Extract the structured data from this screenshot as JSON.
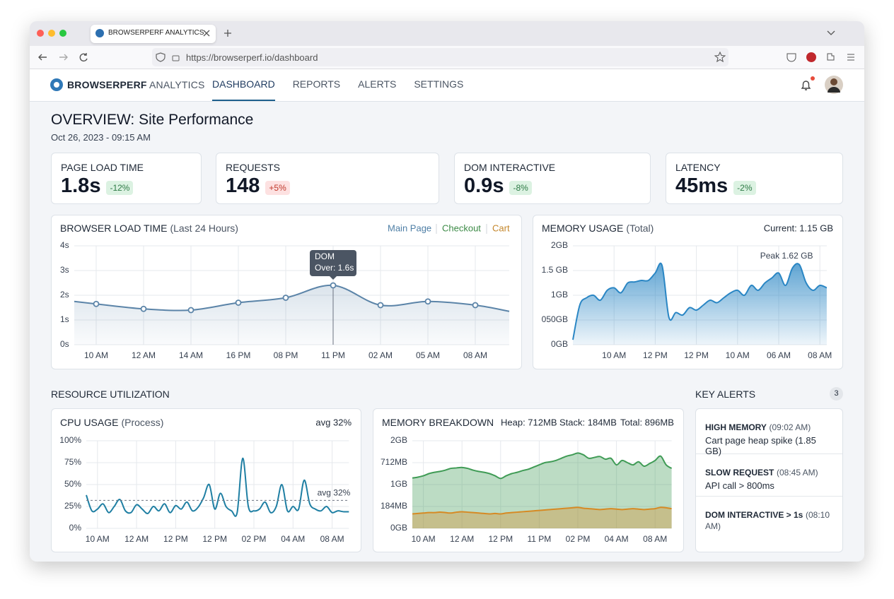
{
  "browser": {
    "tab_title": "BROWSERPERF ANALYTICS",
    "url": "https://browserperf.io/dashboard"
  },
  "nav": {
    "brand": "BROWSERPERF",
    "brand_suffix": "ANALYTICS",
    "links": [
      "DASHBOARD",
      "REPORTS",
      "ALERTS",
      "SETTINGS"
    ],
    "active": 0
  },
  "header": {
    "title": "OVERVIEW: Site Performance",
    "date": "Oct 26, 2023 - 09:15 AM"
  },
  "kpis": [
    {
      "label": "PAGE LOAD TIME",
      "value": "1.8s",
      "change": "-12%"
    },
    {
      "label": "REQUESTS",
      "value": 148,
      "change": "+5%"
    },
    {
      "label": "DOM INTERACTIVE",
      "value": "0.9s",
      "change": "-8%"
    },
    {
      "label": "LATENCY",
      "value": "45ms",
      "change": "-2%"
    }
  ],
  "sections": {
    "resources": "RESOURCE UTILIZATION"
  },
  "alerts": {
    "title": "KEY ALERTS",
    "count": 3,
    "items": [
      {
        "title": "HIGH MEMORY",
        "time": "(09:02 AM)",
        "text": "Cart page heap spike (1.85 GB)"
      },
      {
        "title": "SLOW REQUEST",
        "time": "(08:45 AM)",
        "text": "API call > 800ms"
      },
      {
        "title": "DOM INTERACTIVE > 1s",
        "time": "(08:10 AM)"
      }
    ]
  },
  "chart_data": [
    {
      "type": "area",
      "title": "BROWSER LOAD TIME",
      "subtitle": "(Last 24 Hours)",
      "legend": [
        {
          "name": "Main Page",
          "color": "#4f7fa6"
        },
        {
          "name": "Checkout",
          "color": "#3d8b47"
        },
        {
          "name": "Cart",
          "color": "#c4862a"
        }
      ],
      "categories": [
        null,
        "10 AM",
        "12 AM",
        "14 AM",
        "16 PM",
        "08 PM",
        "11 PM",
        "02 AM",
        "05 AM",
        "08 AM",
        null
      ],
      "series": [
        {
          "color": "#5b84a8",
          "values": [
            1.75,
            1.65,
            1.45,
            1.4,
            1.7,
            1.9,
            2.4,
            1.6,
            1.75,
            1.6,
            1.35
          ]
        }
      ],
      "annotation": [
        "DOM",
        "Over: 1.6s"
      ],
      "ylim": [
        0,
        4
      ],
      "yticks": [
        {
          "value": 0,
          "label": "0s"
        },
        {
          "value": 1,
          "label": "1s"
        },
        {
          "value": 2,
          "label": "2s"
        },
        {
          "value": 3,
          "label": "3s"
        },
        {
          "value": 4,
          "label": "4s"
        }
      ],
      "grid": true
    },
    {
      "type": "area",
      "title": "MEMORY USAGE",
      "subtitle": "(Total)",
      "current_label": "Current: 1.15 GB",
      "peak_label": "Peak 1.62 GB",
      "color": "#2a86c4",
      "categories": [
        null,
        null,
        null,
        null,
        null,
        null,
        "10 AM",
        null,
        null,
        null,
        null,
        null,
        "12 PM",
        null,
        null,
        null,
        null,
        null,
        "12 PM",
        null,
        null,
        null,
        null,
        null,
        "10 AM",
        null,
        null,
        null,
        null,
        null,
        "06 AM",
        null,
        null,
        null,
        null,
        null,
        "08 AM",
        null
      ],
      "values": [
        0.1,
        0.8,
        0.95,
        1.0,
        0.9,
        1.1,
        1.15,
        1.05,
        1.25,
        1.27,
        1.3,
        1.3,
        1.45,
        1.6,
        0.55,
        0.65,
        0.6,
        0.75,
        0.7,
        0.8,
        0.9,
        0.85,
        0.95,
        1.05,
        1.1,
        1.0,
        1.2,
        1.1,
        1.25,
        1.35,
        1.45,
        1.2,
        1.55,
        1.62,
        1.25,
        1.1,
        1.2,
        1.15
      ],
      "ylim": [
        0,
        2
      ],
      "yticks": [
        {
          "value": 0,
          "label": "0GB"
        },
        {
          "value": 0.5,
          "label": "050GB"
        },
        {
          "value": 1,
          "label": "1GB"
        },
        {
          "value": 1.5,
          "label": "1.5 GB"
        },
        {
          "value": 2,
          "label": "2GB"
        }
      ],
      "grid": true
    },
    {
      "type": "line",
      "title": "CPU USAGE",
      "subtitle": "(Process)",
      "avg": 32,
      "avg_label": "avg 32%",
      "color": "#1f7fa3",
      "categories": [
        null,
        null,
        "10 AM",
        null,
        null,
        null,
        null,
        null,
        null,
        "12 AM",
        null,
        null,
        null,
        null,
        null,
        null,
        "12 PM",
        null,
        null,
        null,
        null,
        null,
        null,
        "12 PM",
        null,
        null,
        null,
        null,
        null,
        null,
        "02 PM",
        null,
        null,
        null,
        null,
        null,
        null,
        "04 AM",
        null,
        null,
        null,
        null,
        null,
        null,
        "08 AM",
        null,
        null,
        null
      ],
      "values": [
        38,
        20,
        22,
        28,
        18,
        25,
        33,
        20,
        18,
        27,
        22,
        17,
        25,
        20,
        28,
        18,
        26,
        22,
        30,
        20,
        24,
        35,
        50,
        22,
        40,
        25,
        20,
        18,
        80,
        25,
        20,
        22,
        30,
        18,
        25,
        50,
        20,
        25,
        22,
        55,
        28,
        22,
        20,
        25,
        18,
        20,
        19,
        19
      ],
      "ylim": [
        0,
        100
      ],
      "yticks": [
        {
          "value": 0,
          "label": "0%"
        },
        {
          "value": 25,
          "label": "25%"
        },
        {
          "value": 50,
          "label": "50%"
        },
        {
          "value": 75,
          "label": "75%"
        },
        {
          "value": 100,
          "label": "100%"
        }
      ],
      "grid": true
    },
    {
      "type": "area",
      "title": "MEMORY BREAKDOWN",
      "stats": [
        "Heap: 712MB",
        "Stack: 184MB",
        "Total: 896MB"
      ],
      "categories": [
        null,
        null,
        "10 AM",
        null,
        null,
        null,
        null,
        null,
        null,
        "12 AM",
        null,
        null,
        null,
        null,
        null,
        null,
        "12 PM",
        null,
        null,
        null,
        null,
        null,
        null,
        "11 PM",
        null,
        null,
        null,
        null,
        null,
        null,
        "02 PM",
        null,
        null,
        null,
        null,
        null,
        null,
        "04 AM",
        null,
        null,
        null,
        null,
        null,
        null,
        "08 AM",
        null,
        null,
        null
      ],
      "series": [
        {
          "color": "#3f9b55",
          "values": [
            1.15,
            1.17,
            1.2,
            1.25,
            1.28,
            1.3,
            1.33,
            1.37,
            1.38,
            1.39,
            1.37,
            1.33,
            1.3,
            1.28,
            1.25,
            1.2,
            1.14,
            1.2,
            1.25,
            1.28,
            1.32,
            1.35,
            1.4,
            1.45,
            1.5,
            1.52,
            1.55,
            1.6,
            1.65,
            1.68,
            1.72,
            1.68,
            1.6,
            1.62,
            1.64,
            1.58,
            1.6,
            1.45,
            1.55,
            1.5,
            1.45,
            1.52,
            1.42,
            1.48,
            1.55,
            1.65,
            1.45,
            1.37
          ]
        },
        {
          "color": "#d68a24",
          "values": [
            0.33,
            0.34,
            0.35,
            0.36,
            0.36,
            0.37,
            0.36,
            0.35,
            0.37,
            0.38,
            0.37,
            0.36,
            0.35,
            0.34,
            0.33,
            0.34,
            0.33,
            0.35,
            0.36,
            0.37,
            0.38,
            0.39,
            0.4,
            0.41,
            0.42,
            0.43,
            0.44,
            0.45,
            0.46,
            0.47,
            0.48,
            0.46,
            0.45,
            0.44,
            0.43,
            0.44,
            0.45,
            0.44,
            0.43,
            0.44,
            0.45,
            0.44,
            0.43,
            0.44,
            0.45,
            0.48,
            0.47,
            0.45
          ]
        }
      ],
      "ylim": [
        0,
        2
      ],
      "yticks": [
        {
          "value": 0,
          "label": "0GB"
        },
        {
          "value": 0.5,
          "label": "184MB"
        },
        {
          "value": 1,
          "label": "1GB"
        },
        {
          "value": 1.5,
          "label": "712MB"
        },
        {
          "value": 2,
          "label": "2GB"
        }
      ],
      "grid": true
    }
  ]
}
